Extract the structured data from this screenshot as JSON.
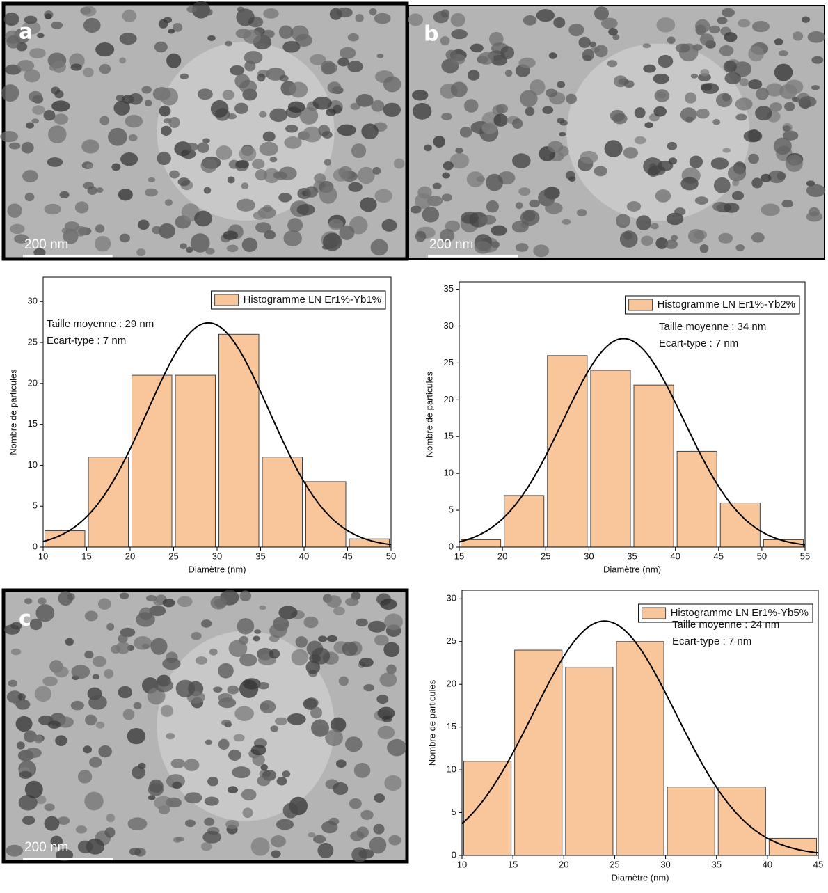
{
  "images": [
    {
      "label": "a",
      "scale_bar": "200 nm"
    },
    {
      "label": "b",
      "scale_bar": "200 nm"
    },
    {
      "label": "c",
      "scale_bar": "200 nm"
    }
  ],
  "chart_data": [
    {
      "type": "histogram",
      "name": "Histogramme LN Er1%-Yb1%",
      "color": "#f9c59a",
      "bins": [
        10,
        15,
        20,
        25,
        30,
        35,
        40,
        45,
        50
      ],
      "counts": [
        2,
        11,
        21,
        21,
        26,
        11,
        8,
        1
      ],
      "xlim": [
        10,
        50
      ],
      "xticks": [
        10,
        15,
        20,
        25,
        30,
        35,
        40,
        45,
        50
      ],
      "ylim": [
        0,
        33
      ],
      "yticks": [
        0,
        5,
        10,
        15,
        20,
        25,
        30
      ],
      "xlabel": "Diamètre (nm)",
      "ylabel": "Nombre de particules",
      "legend": "upper right",
      "annotations": [
        "Taille moyenne : 29 nm",
        "Ecart-type : 7 nm"
      ],
      "fit": {
        "mean": 29,
        "sd": 7,
        "peak": 27.4
      }
    },
    {
      "type": "histogram",
      "name": "Histogramme LN Er1%-Yb2%",
      "color": "#f9c59a",
      "bins": [
        15,
        20,
        25,
        30,
        35,
        40,
        45,
        50,
        55
      ],
      "counts": [
        1,
        7,
        26,
        24,
        22,
        13,
        6,
        1
      ],
      "xlim": [
        15,
        55
      ],
      "xticks": [
        15,
        20,
        25,
        30,
        35,
        40,
        45,
        50,
        55
      ],
      "ylim": [
        0,
        36
      ],
      "yticks": [
        0,
        5,
        10,
        15,
        20,
        25,
        30,
        35
      ],
      "xlabel": "Diamètre (nm)",
      "ylabel": "Nombre de particules",
      "legend": "upper right",
      "annotations": [
        "Taille moyenne : 34 nm",
        "Ecart-type : 7 nm"
      ],
      "fit": {
        "mean": 34,
        "sd": 7,
        "peak": 28.3
      }
    },
    {
      "type": "histogram",
      "name": "Histogramme LN Er1%-Yb5%",
      "color": "#f9c59a",
      "bins": [
        10,
        15,
        20,
        25,
        30,
        35,
        40,
        45
      ],
      "counts": [
        11,
        24,
        22,
        25,
        8,
        8,
        2
      ],
      "xlim": [
        10,
        45
      ],
      "xticks": [
        10,
        15,
        20,
        25,
        30,
        35,
        40,
        45
      ],
      "ylim": [
        0,
        31
      ],
      "yticks": [
        0,
        5,
        10,
        15,
        20,
        25,
        30
      ],
      "xlabel": "Diamètre (nm)",
      "ylabel": "Nombre de particules",
      "legend": "upper right",
      "annotations": [
        "Taille moyenne : 24 nm",
        "Ecart-type : 7 nm"
      ],
      "fit": {
        "mean": 24,
        "sd": 7,
        "peak": 27.4
      }
    }
  ]
}
